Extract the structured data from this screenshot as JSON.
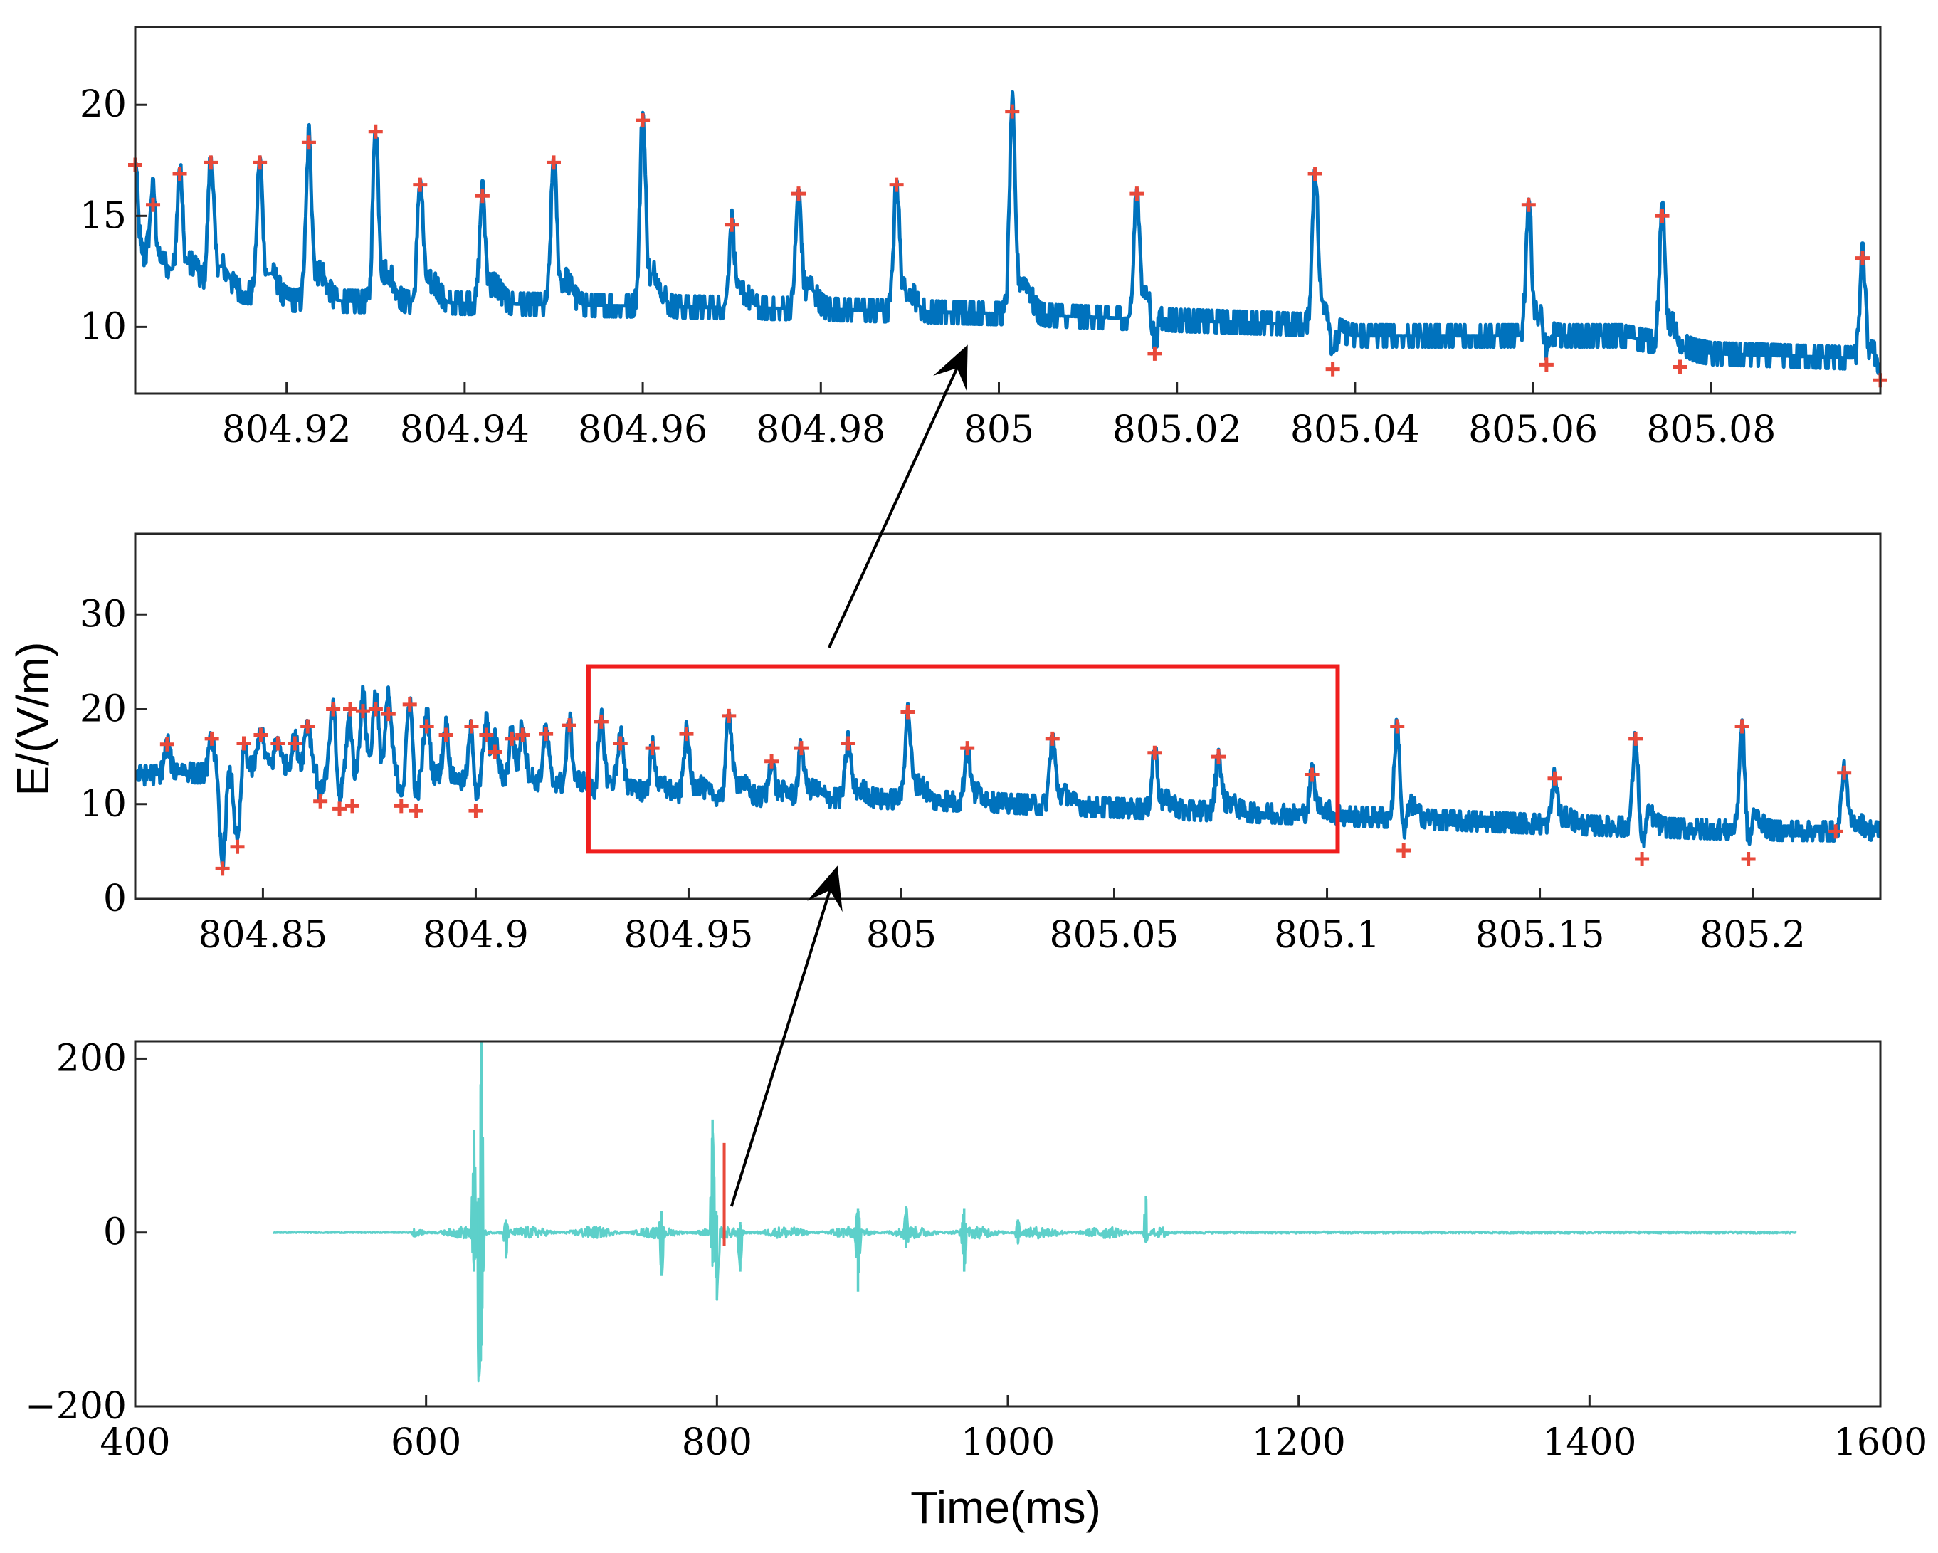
{
  "colors": {
    "signal": "#0072BD",
    "peak_marker": "#E8493A",
    "zoom_box": "#F01E1E",
    "wideband": "#5DD0CA",
    "highlight": "#E8493A",
    "arrow": "#000000",
    "axes": "#262626"
  },
  "chart_data": [
    {
      "id": "top",
      "type": "line",
      "title": "",
      "xlabel": "",
      "ylabel": "",
      "xlim": [
        804.903,
        805.099
      ],
      "ylim": [
        7,
        23.5
      ],
      "xticks": [
        804.92,
        804.94,
        804.96,
        804.98,
        805.0,
        805.02,
        805.04,
        805.06,
        805.08
      ],
      "xtick_labels": [
        "804.92",
        "804.94",
        "804.96",
        "804.98",
        "805",
        "805.02",
        "805.04",
        "805.06",
        "805.08"
      ],
      "yticks": [
        10,
        15,
        20
      ],
      "ytick_labels": [
        "10",
        "15",
        "20"
      ],
      "baseline": [
        [
          804.903,
          12.5
        ],
        [
          804.92,
          11.2
        ],
        [
          804.95,
          11.0
        ],
        [
          804.98,
          10.8
        ],
        [
          805.0,
          10.6
        ],
        [
          805.02,
          10.3
        ],
        [
          805.035,
          10.1
        ],
        [
          805.04,
          9.6
        ],
        [
          805.07,
          9.6
        ],
        [
          805.08,
          8.8
        ],
        [
          805.096,
          8.6
        ],
        [
          805.099,
          7.8
        ]
      ],
      "noise": 0.45,
      "peaks": [
        {
          "x": 804.903,
          "y": 17.3
        },
        {
          "x": 804.905,
          "y": 15.5
        },
        {
          "x": 804.908,
          "y": 16.9
        },
        {
          "x": 804.9115,
          "y": 17.4
        },
        {
          "x": 804.917,
          "y": 17.4
        },
        {
          "x": 804.9225,
          "y": 18.3
        },
        {
          "x": 804.93,
          "y": 18.8
        },
        {
          "x": 804.935,
          "y": 16.4
        },
        {
          "x": 804.942,
          "y": 15.9
        },
        {
          "x": 804.95,
          "y": 17.4
        },
        {
          "x": 804.96,
          "y": 19.3
        },
        {
          "x": 804.97,
          "y": 14.6
        },
        {
          "x": 804.9775,
          "y": 16.0
        },
        {
          "x": 804.9885,
          "y": 16.4
        },
        {
          "x": 805.0015,
          "y": 19.7
        },
        {
          "x": 805.0155,
          "y": 16.0
        },
        {
          "x": 805.0355,
          "y": 16.9
        },
        {
          "x": 805.0595,
          "y": 15.5
        },
        {
          "x": 805.0745,
          "y": 15.0
        },
        {
          "x": 805.097,
          "y": 13.1
        }
      ],
      "dips": [
        {
          "x": 805.0175,
          "y": 8.8
        },
        {
          "x": 805.0375,
          "y": 8.1
        },
        {
          "x": 805.0615,
          "y": 8.3
        },
        {
          "x": 805.0765,
          "y": 8.2
        },
        {
          "x": 805.099,
          "y": 7.6
        }
      ]
    },
    {
      "id": "middle",
      "type": "line",
      "title": "",
      "xlabel": "",
      "ylabel": "E/(V/m)",
      "xlim": [
        804.82,
        805.23
      ],
      "ylim": [
        0,
        38.5
      ],
      "xticks": [
        804.85,
        804.9,
        804.95,
        805.0,
        805.05,
        805.1,
        805.15,
        805.2
      ],
      "xtick_labels": [
        "804.85",
        "804.9",
        "804.95",
        "805",
        "805.05",
        "805.1",
        "805.15",
        "805.2"
      ],
      "yticks": [
        0,
        10,
        20,
        30
      ],
      "ytick_labels": [
        "0",
        "10",
        "20",
        "30"
      ],
      "zoom_box": {
        "x0": 804.9265,
        "x1": 805.1025,
        "y0": 5.0,
        "y1": 24.5
      },
      "baseline": [
        [
          804.82,
          13.0
        ],
        [
          804.86,
          13.6
        ],
        [
          804.88,
          12.0
        ],
        [
          804.92,
          11.2
        ],
        [
          804.96,
          10.8
        ],
        [
          805.0,
          10.5
        ],
        [
          805.05,
          9.6
        ],
        [
          805.1,
          8.8
        ],
        [
          805.15,
          7.9
        ],
        [
          805.2,
          7.2
        ],
        [
          805.23,
          7.1
        ]
      ],
      "noise": 1.1,
      "peaks": [
        {
          "x": 804.8275,
          "y": 16.3
        },
        {
          "x": 804.838,
          "y": 16.9
        },
        {
          "x": 804.8455,
          "y": 16.4
        },
        {
          "x": 804.8495,
          "y": 17.3
        },
        {
          "x": 804.8535,
          "y": 16.4
        },
        {
          "x": 804.8575,
          "y": 16.4
        },
        {
          "x": 804.8605,
          "y": 18.2
        },
        {
          "x": 804.8665,
          "y": 20.0
        },
        {
          "x": 804.8705,
          "y": 20.0
        },
        {
          "x": 804.8735,
          "y": 19.8
        },
        {
          "x": 804.8765,
          "y": 20.0
        },
        {
          "x": 804.8795,
          "y": 19.5
        },
        {
          "x": 804.8845,
          "y": 20.5
        },
        {
          "x": 804.8885,
          "y": 18.2
        },
        {
          "x": 804.893,
          "y": 17.3
        },
        {
          "x": 804.899,
          "y": 18.2
        },
        {
          "x": 804.9025,
          "y": 17.3
        },
        {
          "x": 804.9045,
          "y": 15.5
        },
        {
          "x": 804.9085,
          "y": 16.9
        },
        {
          "x": 804.911,
          "y": 17.3
        },
        {
          "x": 804.9165,
          "y": 17.4
        },
        {
          "x": 804.922,
          "y": 18.3
        },
        {
          "x": 804.9295,
          "y": 18.7
        },
        {
          "x": 804.934,
          "y": 16.4
        },
        {
          "x": 804.9415,
          "y": 15.9
        },
        {
          "x": 804.9495,
          "y": 17.4
        },
        {
          "x": 804.9595,
          "y": 19.3
        },
        {
          "x": 804.9695,
          "y": 14.5
        },
        {
          "x": 804.9765,
          "y": 15.9
        },
        {
          "x": 804.9875,
          "y": 16.4
        },
        {
          "x": 805.0015,
          "y": 19.7
        },
        {
          "x": 805.0155,
          "y": 15.9
        },
        {
          "x": 805.0355,
          "y": 16.9
        },
        {
          "x": 805.0595,
          "y": 15.4
        },
        {
          "x": 805.0745,
          "y": 15.0
        },
        {
          "x": 805.0965,
          "y": 13.1
        },
        {
          "x": 805.1165,
          "y": 18.2
        },
        {
          "x": 805.1535,
          "y": 12.7
        },
        {
          "x": 805.1725,
          "y": 16.9
        },
        {
          "x": 805.1975,
          "y": 18.2
        },
        {
          "x": 805.2215,
          "y": 13.3
        }
      ],
      "dips": [
        {
          "x": 804.8405,
          "y": 3.2
        },
        {
          "x": 804.844,
          "y": 5.5
        },
        {
          "x": 804.8635,
          "y": 10.3
        },
        {
          "x": 804.868,
          "y": 9.5
        },
        {
          "x": 804.871,
          "y": 9.8
        },
        {
          "x": 804.8825,
          "y": 9.8
        },
        {
          "x": 804.886,
          "y": 9.3
        },
        {
          "x": 804.9,
          "y": 9.3
        },
        {
          "x": 805.118,
          "y": 5.1
        },
        {
          "x": 805.174,
          "y": 4.2
        },
        {
          "x": 805.199,
          "y": 4.2
        },
        {
          "x": 805.2195,
          "y": 7.1
        }
      ],
      "marked_dips_indices": [
        0,
        1,
        2,
        3,
        4,
        5,
        6,
        7,
        8,
        9,
        10,
        11
      ]
    },
    {
      "id": "bottom",
      "type": "line",
      "title": "",
      "xlabel": "Time(ms)",
      "ylabel": "",
      "xlim": [
        400,
        1600
      ],
      "ylim": [
        -200,
        220
      ],
      "xticks": [
        400,
        600,
        800,
        1000,
        1200,
        1400,
        1600
      ],
      "xtick_labels": [
        "400",
        "600",
        "800",
        "1000",
        "1200",
        "1400",
        "1600"
      ],
      "yticks": [
        -200,
        0,
        200
      ],
      "ytick_labels": [
        "−200",
        "0",
        "200"
      ],
      "signal_range": [
        495,
        1542
      ],
      "spikes": [
        {
          "x": 633,
          "up": 118,
          "down": -45
        },
        {
          "x": 636,
          "up": 40,
          "down": -158
        },
        {
          "x": 638,
          "up": 220,
          "down": -130
        },
        {
          "x": 655,
          "up": 15,
          "down": -30
        },
        {
          "x": 762,
          "up": 25,
          "down": -50
        },
        {
          "x": 797,
          "up": 130,
          "down": -35
        },
        {
          "x": 800,
          "up": 20,
          "down": -78
        },
        {
          "x": 816,
          "up": 12,
          "down": -45
        },
        {
          "x": 897,
          "up": 28,
          "down": -68
        },
        {
          "x": 930,
          "up": 30,
          "down": -18
        },
        {
          "x": 970,
          "up": 28,
          "down": -45
        },
        {
          "x": 1007,
          "up": 15,
          "down": -12
        },
        {
          "x": 1095,
          "up": 42,
          "down": -12
        }
      ],
      "highlight": {
        "x": 805,
        "top": 103,
        "bottom": -15
      }
    }
  ],
  "arrows": [
    {
      "from_panel": "bottom",
      "from": [
        810,
        30
      ],
      "to_panel": "middle",
      "to": [
        804.985,
        3.5
      ]
    },
    {
      "from_panel": "middle",
      "from": [
        804.983,
        26.5
      ],
      "to_panel": "top",
      "to": [
        804.9965,
        9.2
      ]
    }
  ]
}
